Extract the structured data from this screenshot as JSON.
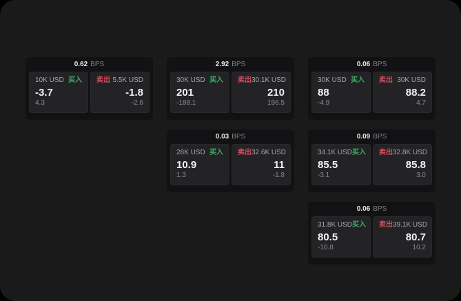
{
  "labels": {
    "buy": "买入",
    "sell": "卖出",
    "bps_unit": "BPS"
  },
  "colors": {
    "buy_green": "#3fae63",
    "sell_red": "#d04c5b",
    "panel_background": "#1a1a1b",
    "card_background": "#121214",
    "tile_background": "#232326"
  },
  "cards": [
    {
      "bps": "0.62",
      "buy": {
        "amount": "10K USD",
        "price": "-3.7",
        "change": "4.3"
      },
      "sell": {
        "amount": "5.5K USD",
        "price": "-1.8",
        "change": "-2.6"
      }
    },
    {
      "bps": "2.92",
      "buy": {
        "amount": "30K USD",
        "price": "201",
        "change": "-188.1"
      },
      "sell": {
        "amount": "30.1K USD",
        "price": "210",
        "change": "196.5"
      }
    },
    {
      "bps": "0.06",
      "buy": {
        "amount": "30K USD",
        "price": "88",
        "change": "-4.9"
      },
      "sell": {
        "amount": "30K USD",
        "price": "88.2",
        "change": "4.7"
      }
    },
    {
      "bps": "0.03",
      "buy": {
        "amount": "28K USD",
        "price": "10.9",
        "change": "1.3"
      },
      "sell": {
        "amount": "32.6K USD",
        "price": "11",
        "change": "-1.8"
      }
    },
    {
      "bps": "0.09",
      "buy": {
        "amount": "34.1K USD",
        "price": "85.5",
        "change": "-3.1"
      },
      "sell": {
        "amount": "32.8K USD",
        "price": "85.8",
        "change": "3.0"
      }
    },
    {
      "bps": "0.06",
      "buy": {
        "amount": "31.8K USD",
        "price": "80.5",
        "change": "-10.8"
      },
      "sell": {
        "amount": "39.1K USD",
        "price": "80.7",
        "change": "10.2"
      }
    }
  ]
}
